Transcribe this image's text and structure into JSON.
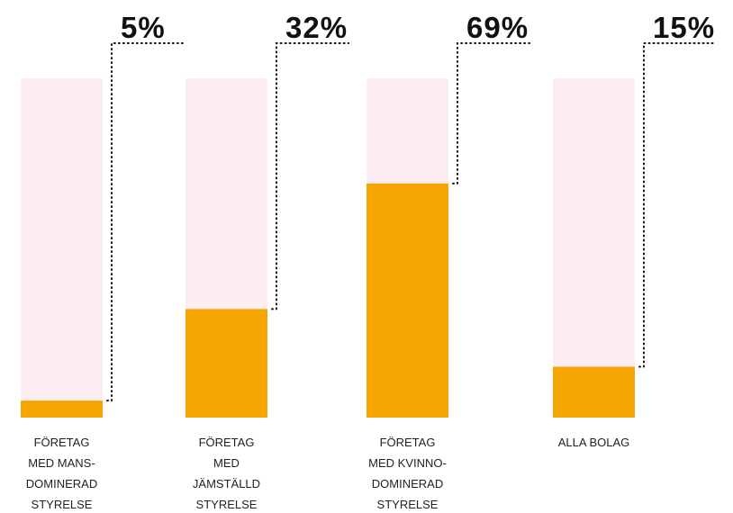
{
  "chart_data": {
    "type": "bar",
    "categories": [
      "FÖRETAG\nMED MANS-\nDOMINERAD\nSTYRELSE",
      "FÖRETAG\nMED\nJÄMSTÄLLD\nSTYRELSE",
      "FÖRETAG\nMED KVINNO-\nDOMINERAD\nSTYRELSE",
      "ALLA BOLAG"
    ],
    "values": [
      5,
      32,
      69,
      15
    ],
    "value_labels": [
      "5%",
      "32%",
      "69%",
      "15%"
    ],
    "color": "#f5a500",
    "ylim": [
      0,
      100
    ]
  }
}
